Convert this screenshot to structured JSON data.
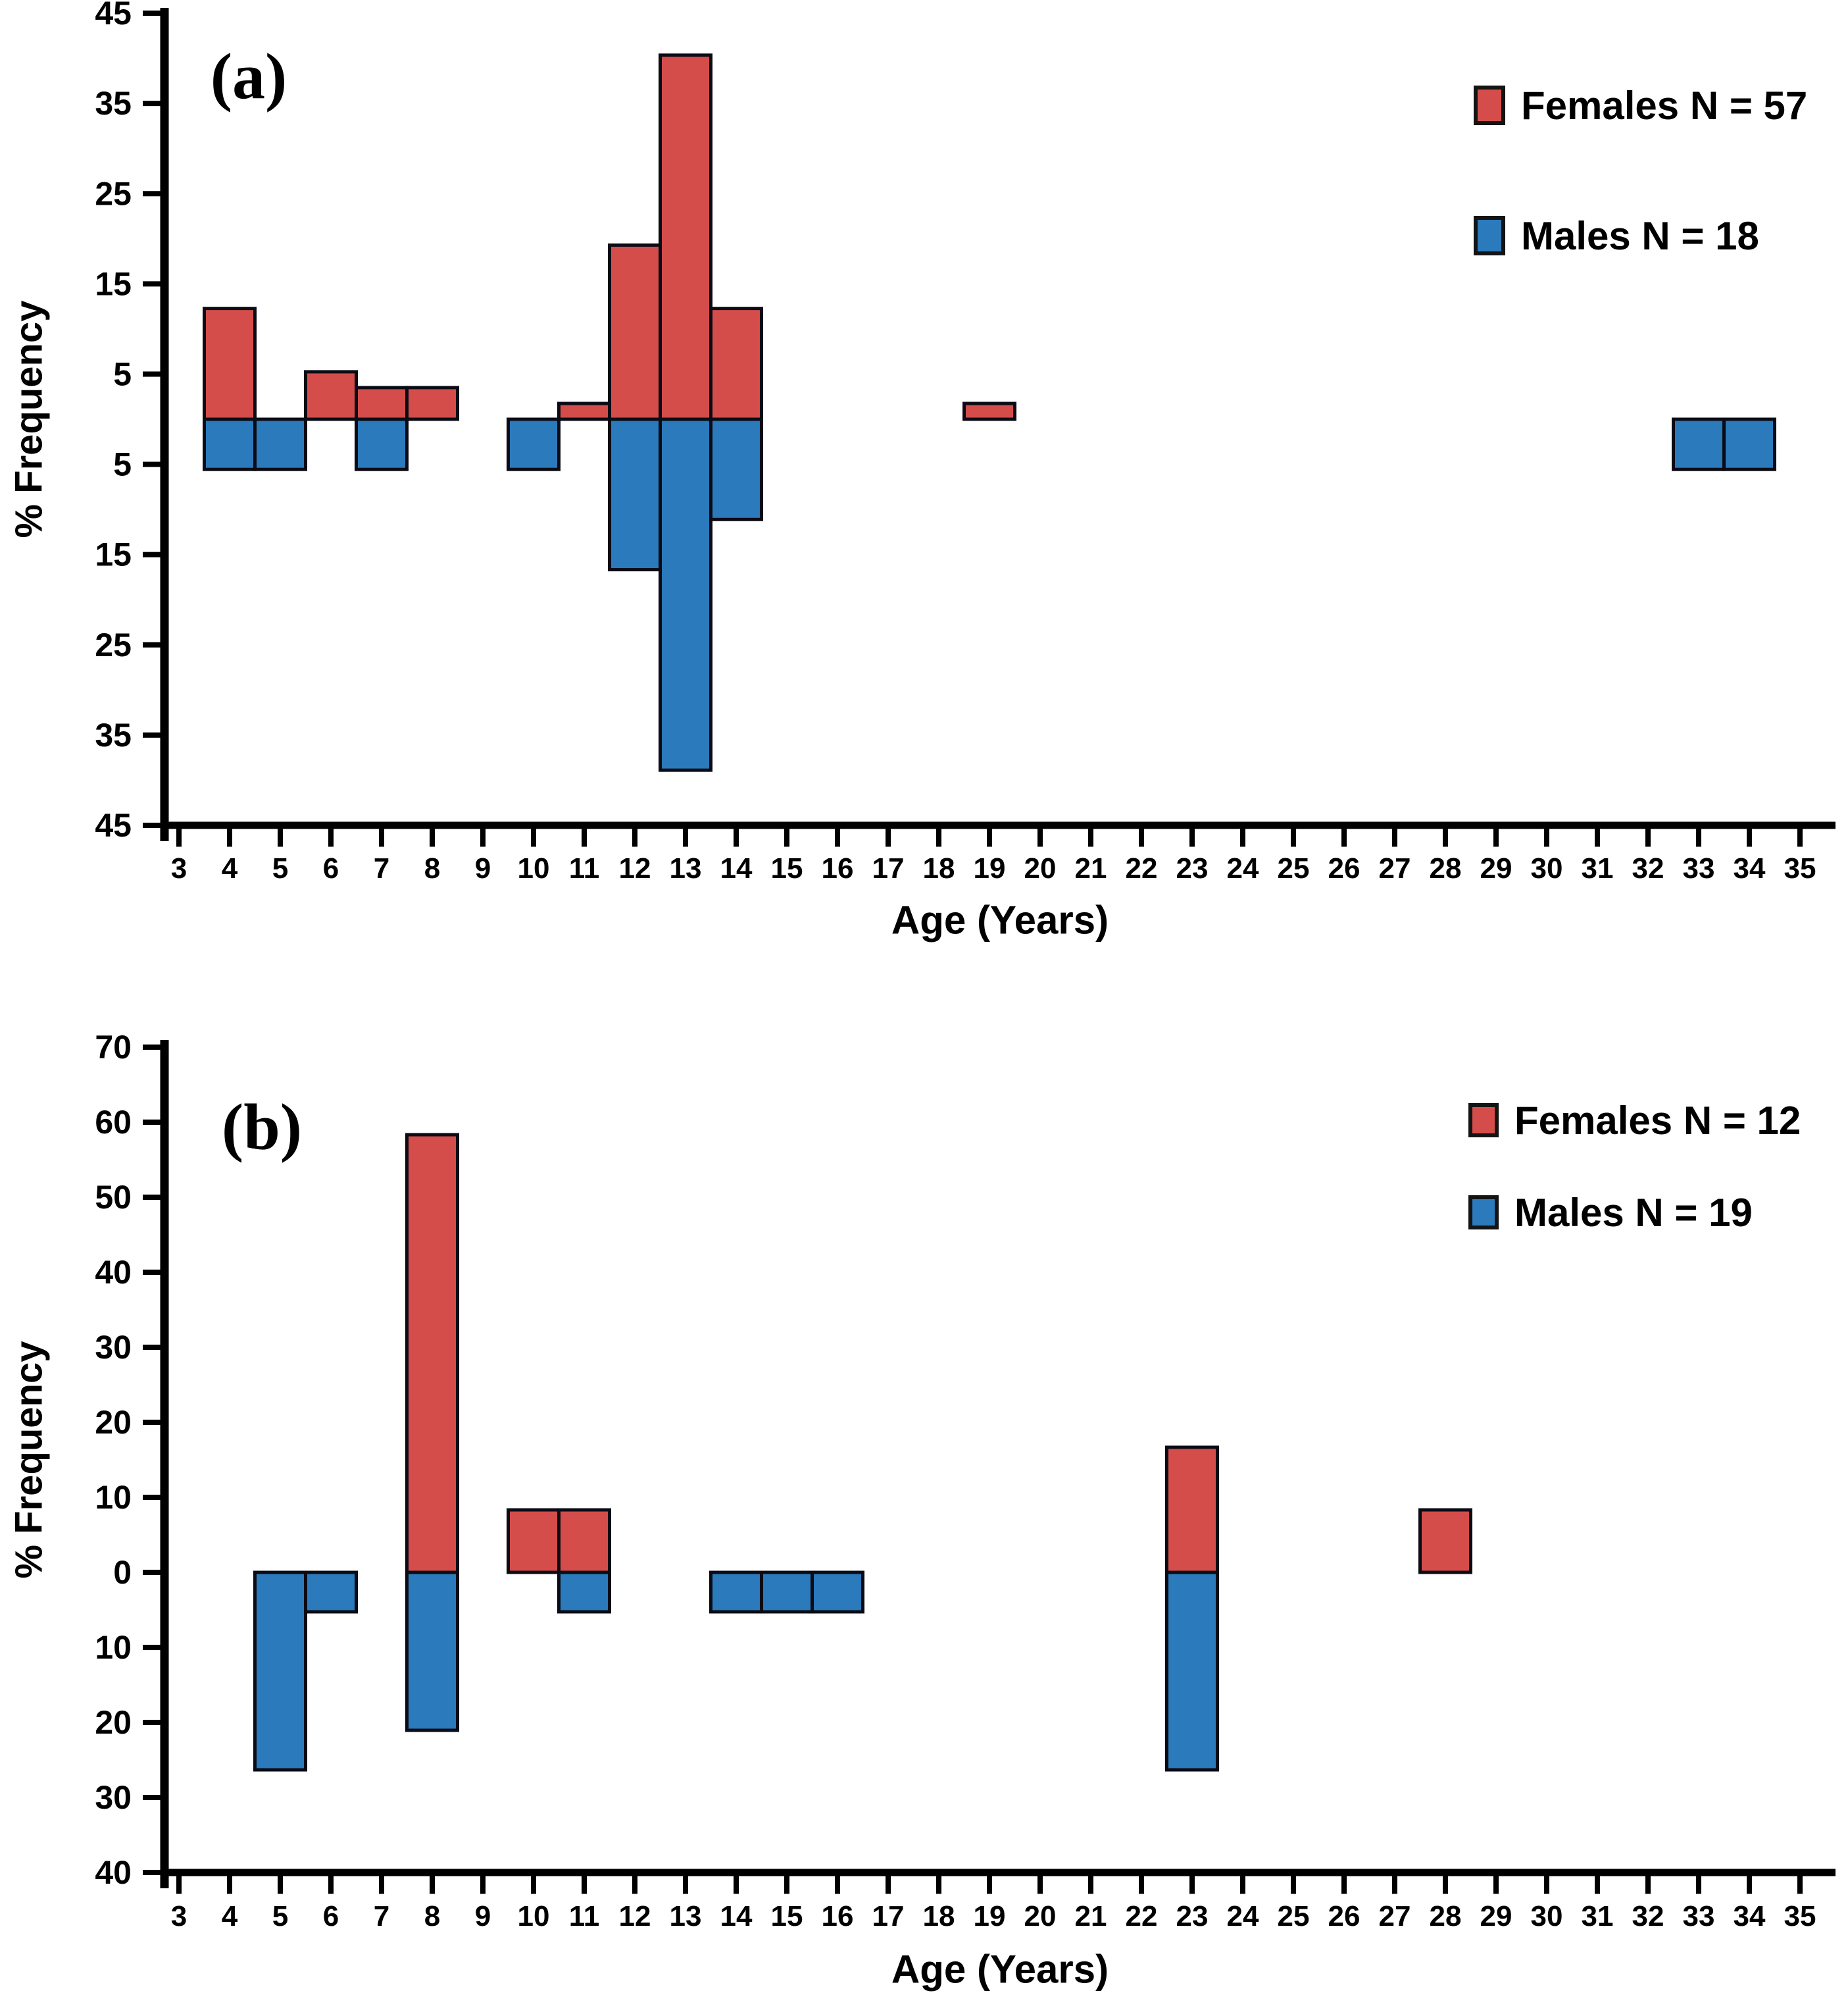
{
  "colors": {
    "female_red": "#d54d4a",
    "male_blue": "#2a7abc",
    "bar_border": "#0b0b15",
    "axis_black": "#000000",
    "background": "#ffffff"
  },
  "panels": [
    {
      "letter": "(a)",
      "y_axis_title": "% Frequency",
      "x_axis_title": "Age (Years)"
    },
    {
      "letter": "(b)",
      "y_axis_title": "% Frequency",
      "x_axis_title": "Age (Years)"
    }
  ],
  "chart_data": [
    {
      "id": "a",
      "type": "bar",
      "subtype": "diverging-age-frequency-pyramid",
      "xlabel": "Age (Years)",
      "ylabel": "% Frequency",
      "legend_position": "top-right",
      "grid": false,
      "xlim": [
        2.5,
        35.5
      ],
      "ylim": [
        -45,
        45
      ],
      "x_ticks": [
        3,
        4,
        5,
        6,
        7,
        8,
        9,
        10,
        11,
        12,
        13,
        14,
        15,
        16,
        17,
        18,
        19,
        20,
        21,
        22,
        23,
        24,
        25,
        26,
        27,
        28,
        29,
        30,
        31,
        32,
        33,
        34,
        35
      ],
      "y_ticks": [
        {
          "value": 45,
          "label": "45"
        },
        {
          "value": 35,
          "label": "35"
        },
        {
          "value": 25,
          "label": "25"
        },
        {
          "value": 15,
          "label": "15"
        },
        {
          "value": 5,
          "label": "5"
        },
        {
          "value": -5,
          "label": "5"
        },
        {
          "value": -15,
          "label": "15"
        },
        {
          "value": -25,
          "label": "25"
        },
        {
          "value": -35,
          "label": "35"
        },
        {
          "value": -45,
          "label": "45"
        }
      ],
      "series": [
        {
          "name": "Females N = 57",
          "n": 57,
          "color": "#d54d4a",
          "direction": "up",
          "points": [
            {
              "age": 4,
              "pct": 12.28
            },
            {
              "age": 6,
              "pct": 5.26
            },
            {
              "age": 7,
              "pct": 3.51
            },
            {
              "age": 8,
              "pct": 3.51
            },
            {
              "age": 11,
              "pct": 1.75
            },
            {
              "age": 12,
              "pct": 19.3
            },
            {
              "age": 13,
              "pct": 40.35
            },
            {
              "age": 14,
              "pct": 12.28
            },
            {
              "age": 19,
              "pct": 1.75
            }
          ]
        },
        {
          "name": "Males N = 18",
          "n": 18,
          "color": "#2a7abc",
          "direction": "down",
          "points": [
            {
              "age": 4,
              "pct": 5.56
            },
            {
              "age": 5,
              "pct": 5.56
            },
            {
              "age": 7,
              "pct": 5.56
            },
            {
              "age": 10,
              "pct": 5.56
            },
            {
              "age": 12,
              "pct": 16.67
            },
            {
              "age": 13,
              "pct": 38.89
            },
            {
              "age": 14,
              "pct": 11.11
            },
            {
              "age": 33,
              "pct": 5.56
            },
            {
              "age": 34,
              "pct": 5.56
            }
          ]
        }
      ]
    },
    {
      "id": "b",
      "type": "bar",
      "subtype": "diverging-age-frequency-pyramid",
      "xlabel": "Age (Years)",
      "ylabel": "% Frequency",
      "legend_position": "top-right",
      "grid": false,
      "xlim": [
        2.5,
        35.5
      ],
      "ylim": [
        -40,
        70
      ],
      "x_ticks": [
        3,
        4,
        5,
        6,
        7,
        8,
        9,
        10,
        11,
        12,
        13,
        14,
        15,
        16,
        17,
        18,
        19,
        20,
        21,
        22,
        23,
        24,
        25,
        26,
        27,
        28,
        29,
        30,
        31,
        32,
        33,
        34,
        35
      ],
      "y_ticks": [
        {
          "value": 70,
          "label": "70"
        },
        {
          "value": 60,
          "label": "60"
        },
        {
          "value": 50,
          "label": "50"
        },
        {
          "value": 40,
          "label": "40"
        },
        {
          "value": 30,
          "label": "30"
        },
        {
          "value": 20,
          "label": "20"
        },
        {
          "value": 10,
          "label": "10"
        },
        {
          "value": 0,
          "label": "0"
        },
        {
          "value": -10,
          "label": "10"
        },
        {
          "value": -20,
          "label": "20"
        },
        {
          "value": -30,
          "label": "30"
        },
        {
          "value": -40,
          "label": "40"
        }
      ],
      "series": [
        {
          "name": "Females N = 12",
          "n": 12,
          "color": "#d54d4a",
          "direction": "up",
          "points": [
            {
              "age": 8,
              "pct": 58.33
            },
            {
              "age": 10,
              "pct": 8.33
            },
            {
              "age": 11,
              "pct": 8.33
            },
            {
              "age": 23,
              "pct": 16.67
            },
            {
              "age": 28,
              "pct": 8.33
            }
          ]
        },
        {
          "name": "Males N = 19",
          "n": 19,
          "color": "#2a7abc",
          "direction": "down",
          "points": [
            {
              "age": 5,
              "pct": 26.32
            },
            {
              "age": 6,
              "pct": 5.26
            },
            {
              "age": 8,
              "pct": 21.05
            },
            {
              "age": 11,
              "pct": 5.26
            },
            {
              "age": 14,
              "pct": 5.26
            },
            {
              "age": 15,
              "pct": 5.26
            },
            {
              "age": 16,
              "pct": 5.26
            },
            {
              "age": 23,
              "pct": 26.32
            }
          ]
        }
      ]
    }
  ]
}
